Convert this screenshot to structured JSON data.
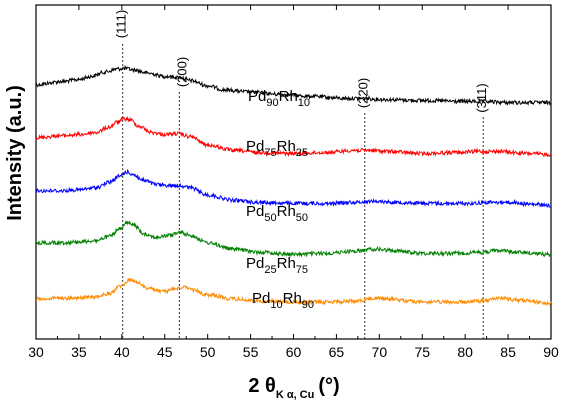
{
  "chart_data": {
    "type": "line",
    "title": "",
    "xlabel": {
      "main": "2 θ",
      "sub": "K α, Cu",
      "unit": "(°)"
    },
    "ylabel": "Intensity (a.u.)",
    "xlim": [
      30,
      90
    ],
    "xticks": [
      30,
      35,
      40,
      45,
      50,
      55,
      60,
      65,
      70,
      75,
      80,
      85,
      90
    ],
    "yticks_shown": false,
    "reference_lines": [
      {
        "label": "(111)",
        "x": 40.1
      },
      {
        "label": "(200)",
        "x": 46.7
      },
      {
        "label": "(220)",
        "x": 68.3
      },
      {
        "label": "(311)",
        "x": 82.1
      }
    ],
    "series": [
      {
        "name": "Pd90Rh10",
        "base": "Pd",
        "base_sub": "90",
        "second": "Rh",
        "second_sub": "10",
        "color": "#000000",
        "offset": 4,
        "noise": 0.012,
        "points": [
          [
            30,
            0.14
          ],
          [
            33,
            0.11
          ],
          [
            35,
            0.09
          ],
          [
            36.5,
            0.06
          ],
          [
            38,
            0.02
          ],
          [
            39.5,
            -0.01
          ],
          [
            40.3,
            -0.015
          ],
          [
            41.5,
            0.0
          ],
          [
            43,
            0.03
          ],
          [
            45,
            0.06
          ],
          [
            46.7,
            0.07
          ],
          [
            48,
            0.1
          ],
          [
            50,
            0.15
          ],
          [
            52,
            0.19
          ],
          [
            55,
            0.21
          ],
          [
            58,
            0.23
          ],
          [
            62,
            0.25
          ],
          [
            66,
            0.27
          ],
          [
            68.3,
            0.27
          ],
          [
            70,
            0.28
          ],
          [
            75,
            0.29
          ],
          [
            80,
            0.3
          ],
          [
            82,
            0.3
          ],
          [
            85,
            0.31
          ],
          [
            90,
            0.31
          ]
        ]
      },
      {
        "name": "Pd75Rh25",
        "base": "Pd",
        "base_sub": "75",
        "second": "Rh",
        "second_sub": "25",
        "color": "#ff0000",
        "offset": 3,
        "noise": 0.012,
        "points": [
          [
            30,
            0.15
          ],
          [
            33,
            0.13
          ],
          [
            35,
            0.12
          ],
          [
            37,
            0.1
          ],
          [
            38.5,
            0.05
          ],
          [
            39.5,
            0.0
          ],
          [
            40.3,
            -0.03
          ],
          [
            41,
            -0.02
          ],
          [
            42,
            0.04
          ],
          [
            43.5,
            0.1
          ],
          [
            45,
            0.12
          ],
          [
            46.5,
            0.11
          ],
          [
            48,
            0.14
          ],
          [
            50,
            0.22
          ],
          [
            53,
            0.27
          ],
          [
            56,
            0.29
          ],
          [
            60,
            0.3
          ],
          [
            64,
            0.29
          ],
          [
            67,
            0.27
          ],
          [
            69,
            0.27
          ],
          [
            71,
            0.28
          ],
          [
            75,
            0.3
          ],
          [
            79,
            0.29
          ],
          [
            82,
            0.28
          ],
          [
            84,
            0.28
          ],
          [
            87,
            0.3
          ],
          [
            90,
            0.31
          ]
        ]
      },
      {
        "name": "Pd50Rh50",
        "base": "Pd",
        "base_sub": "50",
        "second": "Rh",
        "second_sub": "50",
        "color": "#0000ff",
        "offset": 2,
        "noise": 0.012,
        "points": [
          [
            30,
            0.16
          ],
          [
            33,
            0.16
          ],
          [
            35,
            0.15
          ],
          [
            37,
            0.13
          ],
          [
            38.5,
            0.08
          ],
          [
            39.8,
            0.02
          ],
          [
            40.5,
            -0.02
          ],
          [
            41.2,
            0.0
          ],
          [
            42.5,
            0.06
          ],
          [
            44,
            0.1
          ],
          [
            45.5,
            0.11
          ],
          [
            46.8,
            0.11
          ],
          [
            48,
            0.13
          ],
          [
            50,
            0.2
          ],
          [
            53,
            0.25
          ],
          [
            56,
            0.27
          ],
          [
            60,
            0.28
          ],
          [
            64,
            0.28
          ],
          [
            67,
            0.27
          ],
          [
            69.5,
            0.26
          ],
          [
            72,
            0.27
          ],
          [
            76,
            0.28
          ],
          [
            80,
            0.28
          ],
          [
            83,
            0.27
          ],
          [
            85,
            0.27
          ],
          [
            88,
            0.29
          ],
          [
            90,
            0.3
          ]
        ]
      },
      {
        "name": "Pd25Rh75",
        "base": "Pd",
        "base_sub": "25",
        "second": "Rh",
        "second_sub": "75",
        "color": "#008000",
        "offset": 1,
        "noise": 0.012,
        "points": [
          [
            30,
            0.16
          ],
          [
            33,
            0.16
          ],
          [
            35,
            0.15
          ],
          [
            37,
            0.14
          ],
          [
            38.5,
            0.1
          ],
          [
            39.8,
            0.03
          ],
          [
            40.6,
            -0.03
          ],
          [
            41.4,
            -0.01
          ],
          [
            42.5,
            0.07
          ],
          [
            44,
            0.11
          ],
          [
            45.5,
            0.09
          ],
          [
            46.8,
            0.06
          ],
          [
            48,
            0.09
          ],
          [
            50,
            0.16
          ],
          [
            53,
            0.22
          ],
          [
            56,
            0.25
          ],
          [
            60,
            0.27
          ],
          [
            64,
            0.26
          ],
          [
            67,
            0.24
          ],
          [
            69.5,
            0.22
          ],
          [
            71,
            0.23
          ],
          [
            75,
            0.26
          ],
          [
            79,
            0.26
          ],
          [
            82,
            0.25
          ],
          [
            84,
            0.23
          ],
          [
            86,
            0.25
          ],
          [
            90,
            0.27
          ]
        ]
      },
      {
        "name": "Pd10Rh90",
        "base": "Pd",
        "base_sub": "10",
        "second": "Rh",
        "second_sub": "90",
        "color": "#ff8c00",
        "offset": 0,
        "noise": 0.012,
        "points": [
          [
            30,
            0.2
          ],
          [
            33,
            0.19
          ],
          [
            35,
            0.19
          ],
          [
            37,
            0.18
          ],
          [
            38.5,
            0.15
          ],
          [
            39.8,
            0.08
          ],
          [
            40.9,
            0.02
          ],
          [
            41.8,
            0.04
          ],
          [
            43,
            0.1
          ],
          [
            45,
            0.13
          ],
          [
            46.3,
            0.1
          ],
          [
            47.2,
            0.09
          ],
          [
            48.5,
            0.12
          ],
          [
            50,
            0.16
          ],
          [
            53,
            0.2
          ],
          [
            56,
            0.22
          ],
          [
            60,
            0.23
          ],
          [
            64,
            0.23
          ],
          [
            67,
            0.22
          ],
          [
            69.8,
            0.19
          ],
          [
            71,
            0.2
          ],
          [
            75,
            0.23
          ],
          [
            79,
            0.23
          ],
          [
            82,
            0.22
          ],
          [
            84,
            0.19
          ],
          [
            86,
            0.21
          ],
          [
            90,
            0.24
          ]
        ]
      }
    ],
    "grid": false,
    "legend": "inline"
  }
}
